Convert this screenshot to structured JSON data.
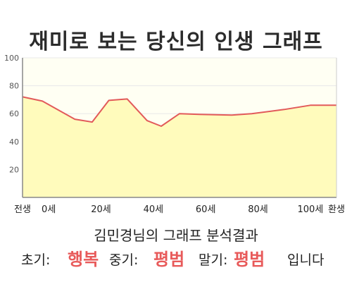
{
  "title": "재미로 보는 당신의 인생 그래프",
  "chart_data": {
    "type": "area",
    "title": "재미로 보는 당신의 인생 그래프",
    "x": [
      0,
      0.38,
      1.0,
      1.33,
      1.65,
      2.0,
      2.38,
      2.65,
      3.0,
      3.38,
      4.0,
      4.38,
      5.0,
      5.5,
      6.0
    ],
    "values": [
      72,
      69,
      56,
      54,
      69.5,
      70.5,
      55,
      51,
      60,
      59.5,
      59,
      60,
      63,
      66,
      66
    ],
    "x_ticks": [
      {
        "pos": 0,
        "label": "전생"
      },
      {
        "pos": 0.5,
        "label": "0세"
      },
      {
        "pos": 1.5,
        "label": "20세"
      },
      {
        "pos": 2.5,
        "label": "40세"
      },
      {
        "pos": 3.5,
        "label": "60세"
      },
      {
        "pos": 4.5,
        "label": "80세"
      },
      {
        "pos": 5.5,
        "label": "100세"
      },
      {
        "pos": 6.0,
        "label": "환생"
      }
    ],
    "y_ticks": [
      20,
      40,
      60,
      80,
      100
    ],
    "ylim": [
      0,
      100
    ],
    "xlim": [
      0,
      6
    ],
    "grid": true,
    "colors": {
      "line": "#e25a5a",
      "area": "#fffbbc",
      "plot_bg": "#fffff3",
      "axis": "#888888",
      "grid": "#e8e8e8"
    }
  },
  "result": {
    "heading": "김민경님의 그래프 분석결과",
    "early_label": "초기:",
    "early_value": "행복",
    "middle_label": "중기:",
    "middle_value": "평범",
    "late_label": "말기:",
    "late_value": "평범",
    "suffix": "입니다"
  }
}
